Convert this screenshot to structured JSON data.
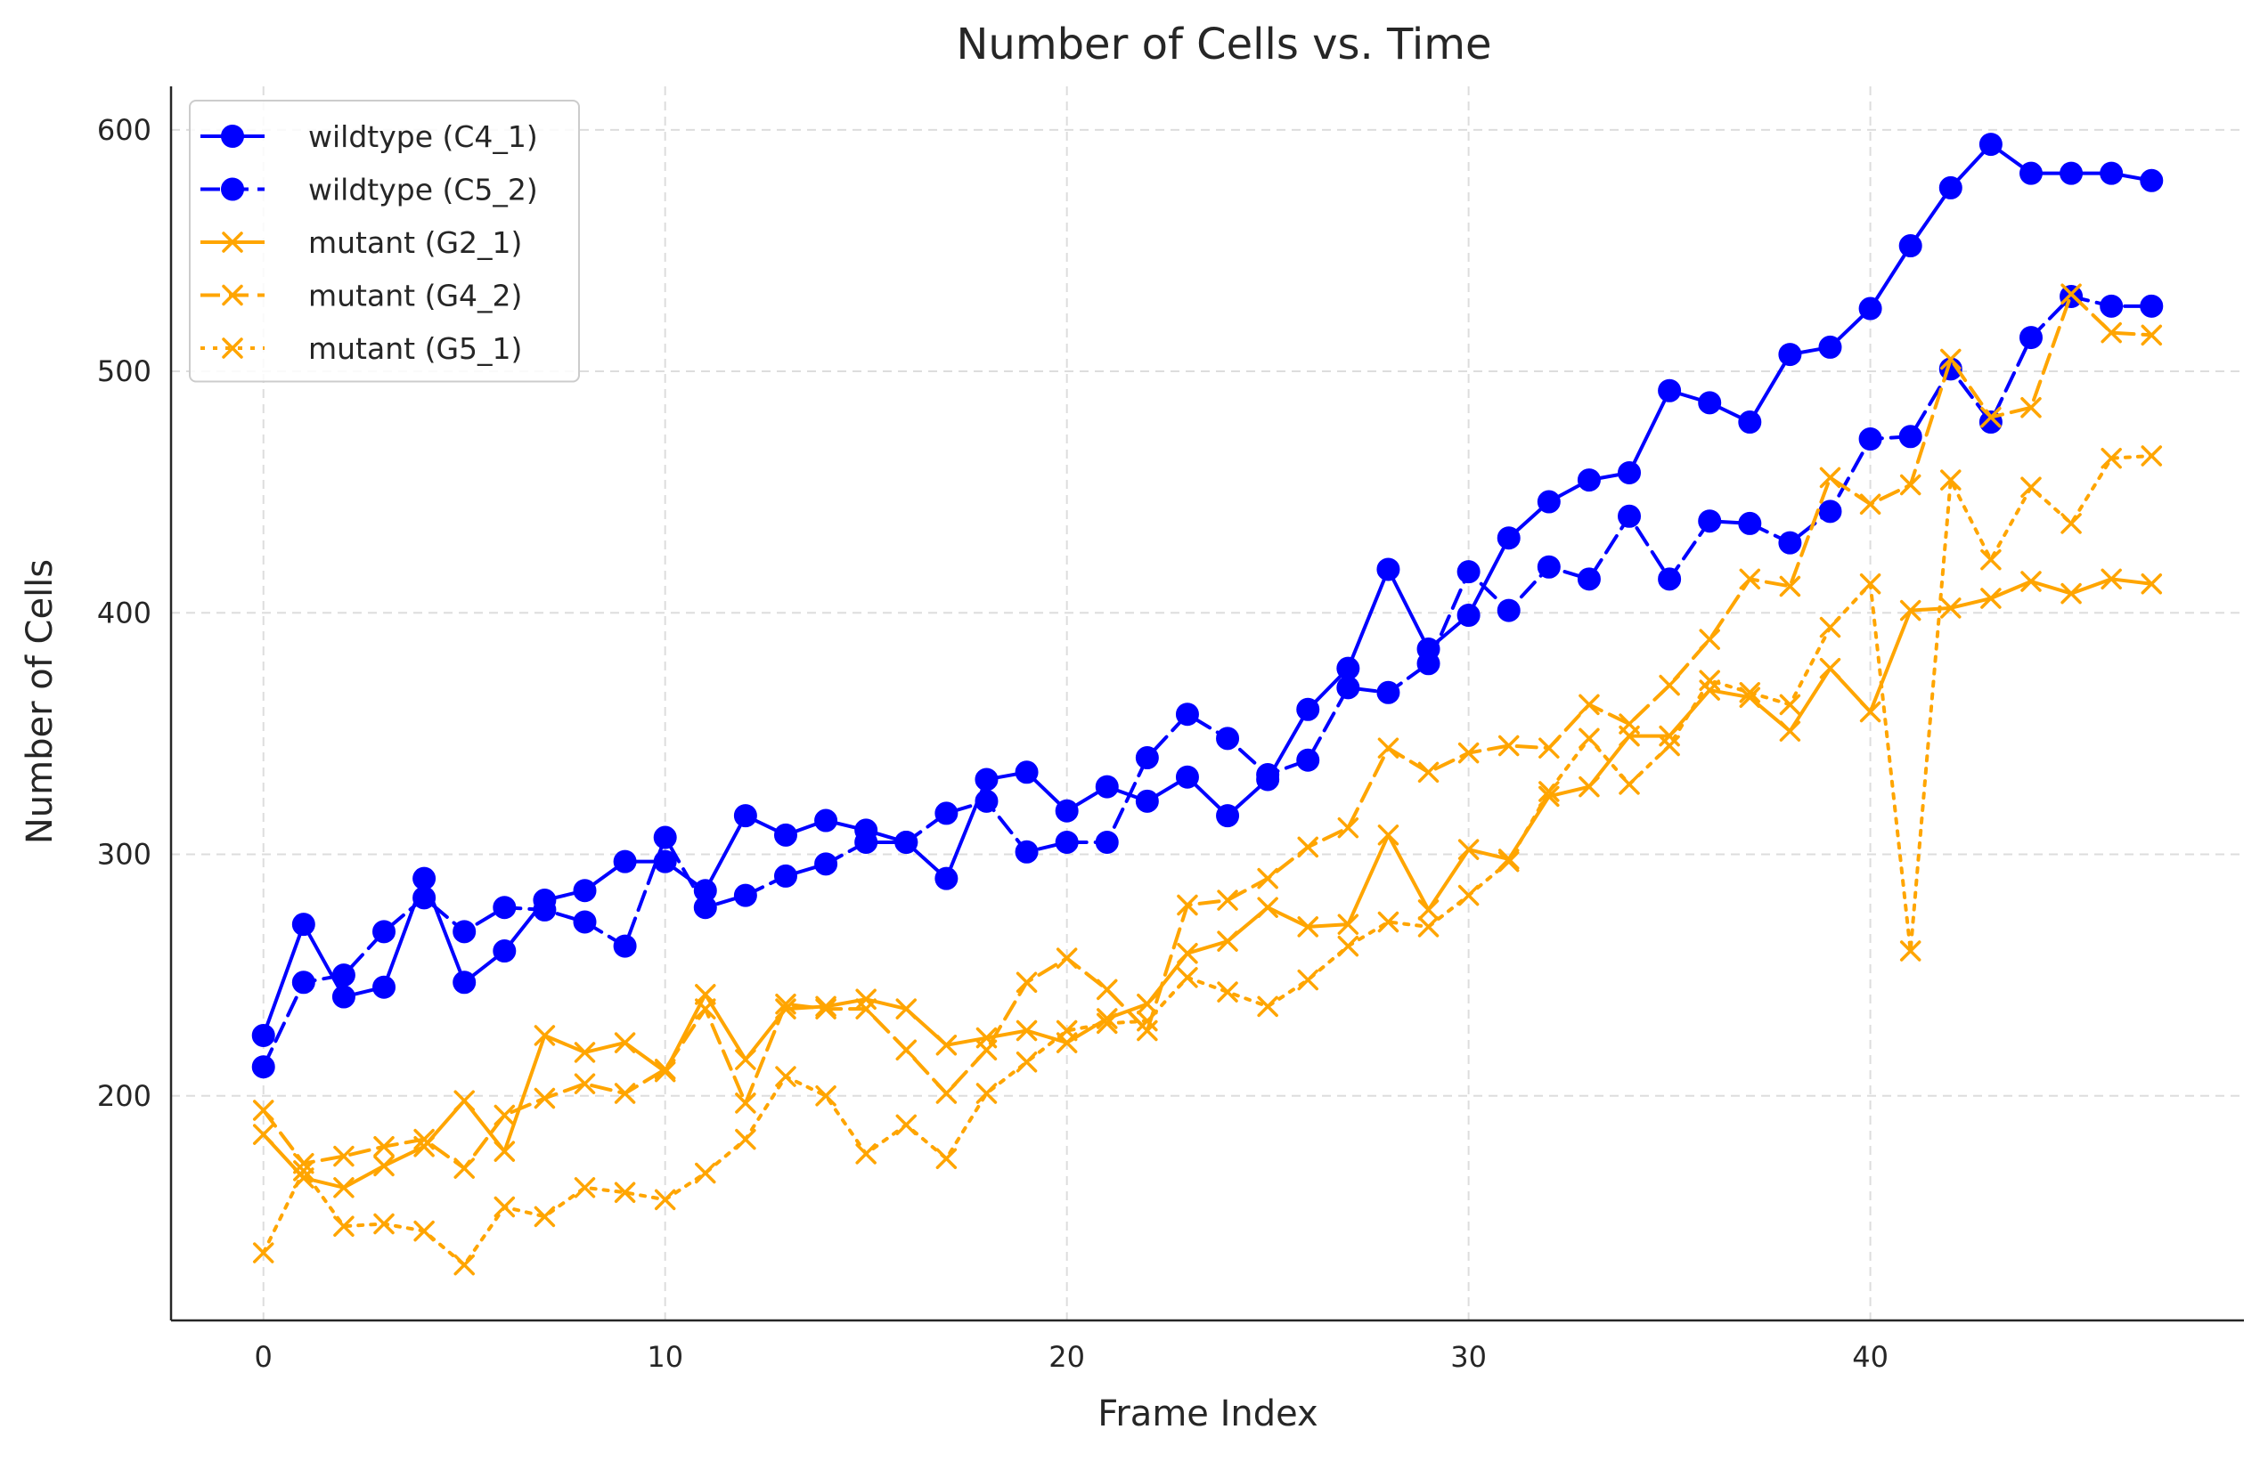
{
  "chart_data": {
    "type": "line",
    "title": "Number of Cells vs. Time",
    "xlabel": "Frame Index",
    "ylabel": "Number of Cells",
    "xlim": [
      -2.3,
      49.3
    ],
    "ylim": [
      107,
      618
    ],
    "xticks": [
      0,
      10,
      20,
      30,
      40
    ],
    "yticks": [
      200,
      300,
      400,
      500,
      600
    ],
    "grid": true,
    "legend_position": "top-left",
    "x": [
      0,
      1,
      2,
      3,
      4,
      5,
      6,
      7,
      8,
      9,
      10,
      11,
      12,
      13,
      14,
      15,
      16,
      17,
      18,
      19,
      20,
      21,
      22,
      23,
      24,
      25,
      26,
      27,
      28,
      29,
      30,
      31,
      32,
      33,
      34,
      35,
      36,
      37,
      38,
      39,
      40,
      41,
      42,
      43,
      44,
      45,
      46,
      47
    ],
    "series": [
      {
        "name": "wildtype (C4_1)",
        "color": "#0000ff",
        "dash": "solid",
        "marker": "circle",
        "values": [
          225,
          271,
          241,
          245,
          290,
          247,
          260,
          281,
          285,
          297,
          297,
          285,
          316,
          308,
          314,
          310,
          305,
          290,
          331,
          334,
          318,
          328,
          322,
          332,
          316,
          331,
          360,
          377,
          418,
          385,
          399,
          431,
          446,
          455,
          458,
          492,
          487,
          479,
          507,
          510,
          526,
          552,
          576,
          594,
          582,
          582,
          582,
          579
        ]
      },
      {
        "name": "wildtype (C5_2)",
        "color": "#0000ff",
        "dash": "dashed",
        "marker": "circle",
        "values": [
          212,
          247,
          250,
          268,
          282,
          268,
          278,
          277,
          272,
          262,
          307,
          278,
          283,
          291,
          296,
          305,
          305,
          317,
          322,
          301,
          305,
          305,
          340,
          358,
          348,
          333,
          339,
          369,
          367,
          379,
          417,
          401,
          419,
          414,
          440,
          414,
          438,
          437,
          429,
          442,
          472,
          473,
          501,
          479,
          514,
          531,
          527,
          527
        ]
      },
      {
        "name": "mutant (G2_1)",
        "color": "#ffa500",
        "dash": "solid",
        "marker": "x",
        "values": [
          184,
          166,
          162,
          171,
          179,
          198,
          177,
          225,
          218,
          222,
          210,
          242,
          215,
          236,
          237,
          240,
          236,
          221,
          224,
          227,
          222,
          232,
          238,
          259,
          264,
          278,
          270,
          271,
          308,
          277,
          302,
          298,
          324,
          328,
          349,
          349,
          368,
          365,
          351,
          377,
          359,
          401,
          402,
          406,
          413,
          408,
          414,
          412
        ]
      },
      {
        "name": "mutant (G4_2)",
        "color": "#ffa500",
        "dash": "dashed",
        "marker": "x",
        "values": [
          194,
          172,
          175,
          179,
          182,
          170,
          192,
          199,
          205,
          201,
          211,
          236,
          197,
          238,
          236,
          236,
          219,
          201,
          219,
          247,
          257,
          244,
          227,
          279,
          281,
          290,
          303,
          311,
          344,
          334,
          342,
          345,
          344,
          362,
          354,
          370,
          389,
          414,
          411,
          456,
          445,
          453,
          505,
          481,
          485,
          532,
          516,
          515
        ]
      },
      {
        "name": "mutant (G5_1)",
        "color": "#ffa500",
        "dash": "dotted",
        "marker": "x",
        "values": [
          135,
          169,
          146,
          147,
          144,
          130,
          154,
          150,
          162,
          160,
          157,
          168,
          182,
          208,
          200,
          176,
          188,
          174,
          201,
          214,
          227,
          230,
          231,
          249,
          243,
          237,
          248,
          262,
          272,
          270,
          283,
          297,
          326,
          348,
          329,
          345,
          372,
          367,
          362,
          394,
          412,
          260,
          455,
          422,
          452,
          437,
          464,
          465
        ]
      }
    ]
  }
}
